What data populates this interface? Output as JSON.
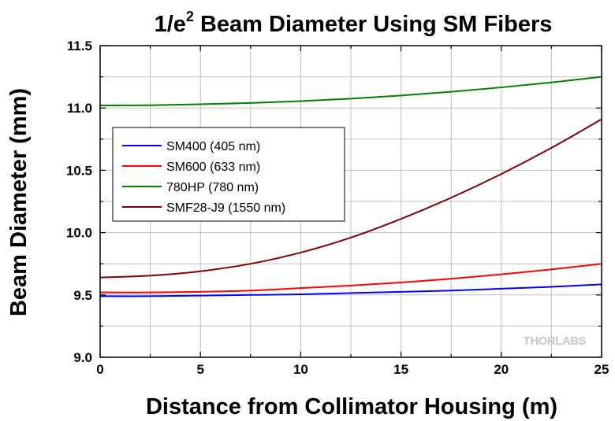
{
  "chart_data": {
    "type": "line",
    "title_main": "1/e",
    "title_sup": "2",
    "title_rest": " Beam Diameter Using SM Fibers",
    "xlabel": "Distance from Collimator Housing (m)",
    "ylabel": "Beam Diameter (mm)",
    "xlim": [
      0,
      25
    ],
    "ylim": [
      9.0,
      11.5
    ],
    "xticks": [
      0,
      5,
      10,
      15,
      20,
      25
    ],
    "xtick_labels": [
      "0",
      "5",
      "10",
      "15",
      "20",
      "25"
    ],
    "yticks": [
      9.0,
      9.5,
      10.0,
      10.5,
      11.0,
      11.5
    ],
    "ytick_labels": [
      "9.0",
      "9.5",
      "10.0",
      "10.5",
      "11.0",
      "11.5"
    ],
    "grid": true,
    "legend_position": "middle-left",
    "watermark": "THORLABS",
    "x": [
      0,
      2.5,
      5,
      7.5,
      10,
      12.5,
      15,
      17.5,
      20,
      22.5,
      25
    ],
    "series": [
      {
        "name": "SM400 (405 nm)",
        "color": "#0000ff",
        "values": [
          9.49,
          9.49,
          9.495,
          9.5,
          9.505,
          9.515,
          9.525,
          9.535,
          9.55,
          9.565,
          9.585
        ]
      },
      {
        "name": "SM600 (633 nm)",
        "color": "#ff0000",
        "values": [
          9.52,
          9.52,
          9.525,
          9.535,
          9.555,
          9.575,
          9.6,
          9.63,
          9.665,
          9.705,
          9.75
        ]
      },
      {
        "name": "780HP (780 nm)",
        "color": "#008000",
        "values": [
          11.02,
          11.022,
          11.03,
          11.04,
          11.055,
          11.075,
          11.1,
          11.13,
          11.165,
          11.205,
          11.25
        ]
      },
      {
        "name": "SMF28-J9 (1550 nm)",
        "color": "#800000",
        "values": [
          9.64,
          9.655,
          9.69,
          9.75,
          9.84,
          9.96,
          10.11,
          10.28,
          10.47,
          10.68,
          10.91
        ]
      }
    ]
  }
}
